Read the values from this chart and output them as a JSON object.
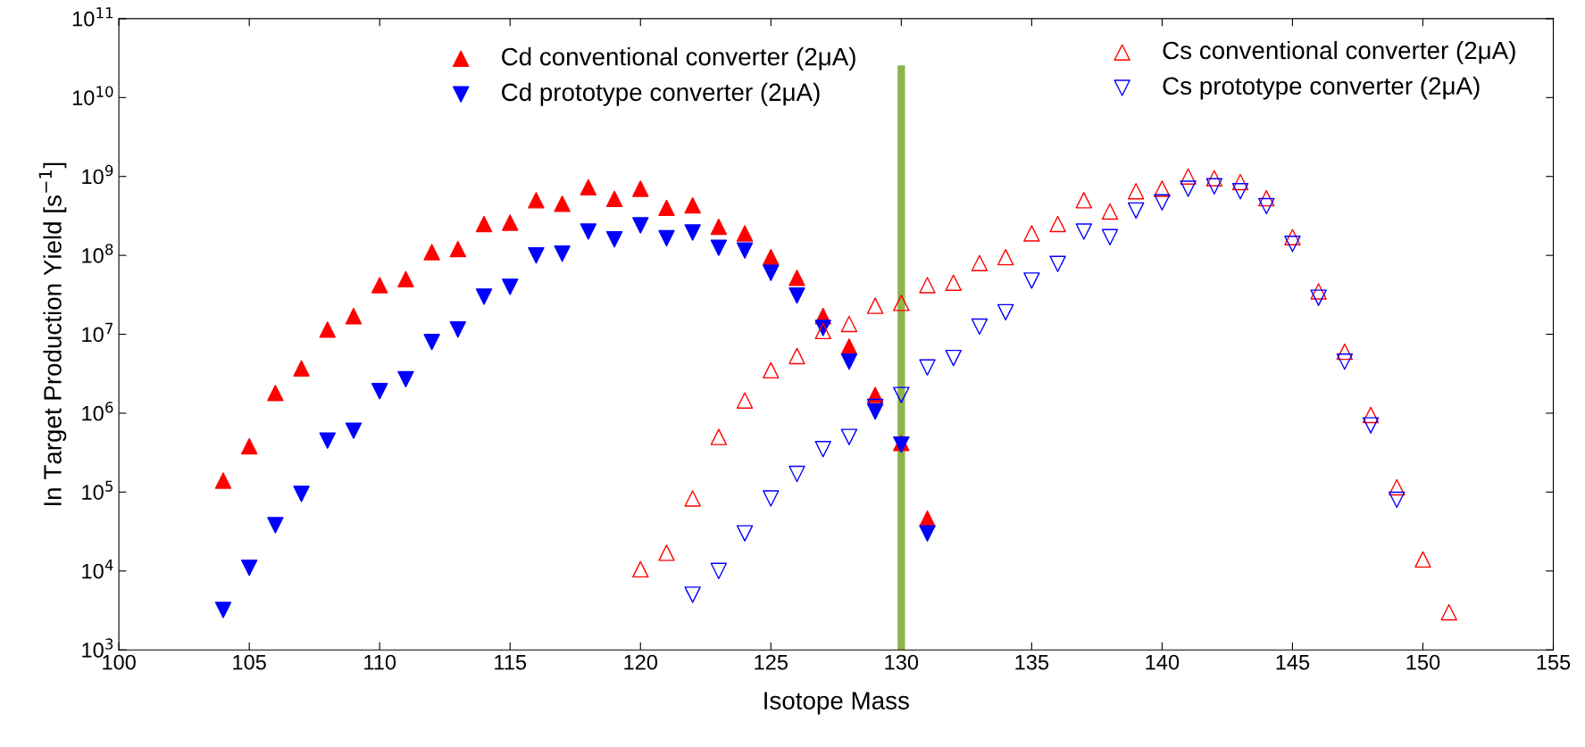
{
  "chart_data": {
    "type": "scatter",
    "xlabel": "Isotope Mass",
    "ylabel": "In Target Production Yield [s$^{−1}$]",
    "log": "y",
    "xlim": [
      100,
      155
    ],
    "xticks": [
      100,
      105,
      110,
      115,
      120,
      125,
      130,
      135,
      140,
      145,
      150,
      155
    ],
    "ylim": [
      1000,
      100000000000
    ],
    "yticks": [
      {
        "value": 1000,
        "label": "10$^{3}$"
      },
      {
        "value": 10000,
        "label": "10$^{4}$"
      },
      {
        "value": 100000,
        "label": "10$^{5}$"
      },
      {
        "value": 1000000,
        "label": "10$^{6}$"
      },
      {
        "value": 10000000,
        "label": "10$^{7}$"
      },
      {
        "value": 100000000,
        "label": "10$^{8}$"
      },
      {
        "value": 1000000000,
        "label": "10$^{9}$"
      },
      {
        "value": 10000000000,
        "label": "10$^{10}$"
      },
      {
        "value": 100000000000,
        "label": "10$^{11}$"
      }
    ],
    "grid": false,
    "legend": "top",
    "ref_lines": [
      {
        "axis": "x",
        "value": 130,
        "color": "#8db54b"
      }
    ],
    "series": [
      {
        "name": "Cd conventional converter (2μA)",
        "color": "#ff0000",
        "marker": "triangle",
        "x": [
          104,
          105,
          106,
          107,
          108,
          109,
          110,
          111,
          112,
          113,
          114,
          115,
          116,
          117,
          118,
          119,
          120,
          121,
          122,
          123,
          124,
          125,
          126,
          127,
          128,
          129,
          130,
          131
        ],
        "values": [
          140000,
          380000,
          1800000,
          3700000,
          11500000,
          17000000,
          42000000,
          50000000,
          110000000,
          120000000,
          250000000,
          260000000,
          500000000,
          450000000,
          730000000,
          520000000,
          700000000,
          400000000,
          430000000,
          230000000,
          190000000,
          95000000,
          52000000,
          17000000,
          7000000,
          1700000,
          420000,
          46000
        ]
      },
      {
        "name": "Cd prototype converter (2μA)",
        "color": "#0000ff",
        "marker": "triangle_down",
        "x": [
          104,
          105,
          106,
          107,
          108,
          109,
          110,
          111,
          112,
          113,
          114,
          115,
          116,
          117,
          118,
          119,
          120,
          121,
          122,
          123,
          124,
          125,
          126,
          127,
          128,
          129,
          130,
          131
        ],
        "values": [
          3200,
          11000,
          38000,
          95000,
          450000,
          600000,
          1900000,
          2700000,
          8000000,
          11500000,
          30000000,
          40000000,
          100000000,
          105000000,
          200000000,
          160000000,
          240000000,
          165000000,
          195000000,
          125000000,
          115000000,
          60000000,
          31000000,
          12000000,
          4500000,
          1050000,
          400000,
          30000
        ]
      },
      {
        "name": "Cs conventional converter (2μA)",
        "color": "#ff0000",
        "marker": "triangle-open",
        "x": [
          120,
          121,
          122,
          123,
          124,
          125,
          126,
          127,
          128,
          129,
          130,
          131,
          132,
          133,
          134,
          135,
          136,
          137,
          138,
          139,
          140,
          141,
          142,
          143,
          144,
          145,
          146,
          147,
          148,
          149,
          150,
          151
        ],
        "values": [
          10500,
          17000,
          83000,
          500000,
          1450000,
          3500000,
          5300000,
          11000000,
          13500000,
          23000000,
          25000000,
          42000000,
          45000000,
          80000000,
          95000000,
          190000000,
          250000000,
          500000000,
          360000000,
          650000000,
          700000000,
          1000000000,
          950000000,
          850000000,
          530000000,
          170000000,
          35000000,
          6000000,
          950000,
          115000,
          14000,
          3000
        ]
      },
      {
        "name": "Cs prototype converter (2μA)",
        "color": "#0000ff",
        "marker": "triangle_down-open",
        "x": [
          122,
          123,
          124,
          125,
          126,
          127,
          128,
          129,
          130,
          131,
          132,
          133,
          134,
          135,
          136,
          137,
          138,
          139,
          140,
          141,
          142,
          143,
          144,
          145,
          146,
          147,
          148,
          149
        ],
        "values": [
          5000,
          10000,
          30000,
          83000,
          170000,
          350000,
          500000,
          1200000,
          1700000,
          3800000,
          5000000,
          12500000,
          19000000,
          48000000,
          78000000,
          200000000,
          170000000,
          370000000,
          470000000,
          700000000,
          750000000,
          650000000,
          420000000,
          140000000,
          29000000,
          4500000,
          700000,
          80000
        ]
      }
    ]
  }
}
